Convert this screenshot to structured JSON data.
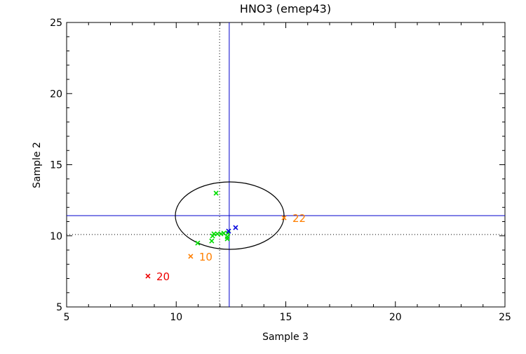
{
  "chart_data": {
    "type": "scatter",
    "title": "HNO3 (emep43)",
    "xlabel": "Sample 3",
    "ylabel": "Sample 2",
    "xlim": [
      5,
      25
    ],
    "ylim": [
      5,
      25
    ],
    "xticks": [
      5,
      10,
      15,
      20,
      25
    ],
    "yticks": [
      5,
      10,
      15,
      20,
      25
    ],
    "grid": false,
    "reference_lines": {
      "solid_vertical_x": 12.42,
      "dotted_vertical_x": 11.98,
      "solid_horizontal_y": 11.42,
      "dotted_horizontal_y": 10.09,
      "solid_color": "#0000cc",
      "dotted_color": "#000000"
    },
    "ellipse": {
      "cx": 12.44,
      "cy": 11.42,
      "rx": 2.48,
      "ry": 2.37,
      "color": "#000000"
    },
    "series": [
      {
        "name": "green",
        "color": "#00dd00",
        "points": [
          [
            11.82,
            13.0
          ],
          [
            10.98,
            9.49
          ],
          [
            11.66,
            9.99
          ],
          [
            11.72,
            10.14
          ],
          [
            11.88,
            10.14
          ],
          [
            12.04,
            10.14
          ],
          [
            12.17,
            10.19
          ],
          [
            11.62,
            9.64
          ],
          [
            12.33,
            9.79
          ],
          [
            12.36,
            10.19
          ],
          [
            12.33,
            9.94
          ]
        ]
      },
      {
        "name": "blue",
        "color": "#0000dd",
        "points": [
          [
            12.39,
            10.33
          ],
          [
            12.71,
            10.58
          ]
        ]
      },
      {
        "name": "orange",
        "color": "#ff7f00",
        "points": [
          [
            14.92,
            11.27
          ],
          [
            10.66,
            8.56
          ]
        ],
        "labels": [
          "22",
          "10"
        ]
      },
      {
        "name": "red",
        "color": "#ee0000",
        "points": [
          [
            8.71,
            7.17
          ]
        ],
        "labels": [
          "20"
        ]
      }
    ]
  }
}
